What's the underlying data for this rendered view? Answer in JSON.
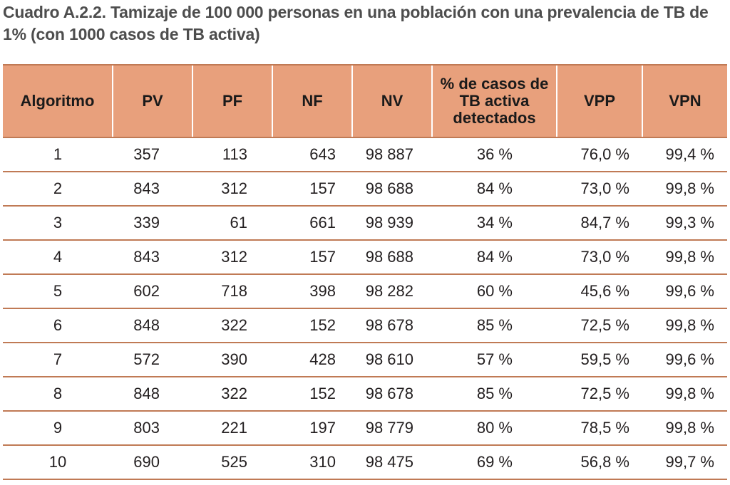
{
  "caption": "Cuadro A.2.2. Tamizaje de 100 000 personas en una población con una prevalencia de TB de 1% (con 1000 casos de TB activa)",
  "columns": [
    "Algoritmo",
    "PV",
    "PF",
    "NF",
    "NV",
    "% de casos de TB activa detectados",
    "VPP",
    "VPN"
  ],
  "rows": [
    [
      "1",
      "357",
      "113",
      "643",
      "98 887",
      "36 %",
      "76,0 %",
      "99,4 %"
    ],
    [
      "2",
      "843",
      "312",
      "157",
      "98 688",
      "84 %",
      "73,0 %",
      "99,8 %"
    ],
    [
      "3",
      "339",
      "61",
      "661",
      "98 939",
      "34 %",
      "84,7 %",
      "99,3 %"
    ],
    [
      "4",
      "843",
      "312",
      "157",
      "98 688",
      "84 %",
      "73,0 %",
      "99,8 %"
    ],
    [
      "5",
      "602",
      "718",
      "398",
      "98 282",
      "60 %",
      "45,6 %",
      "99,6 %"
    ],
    [
      "6",
      "848",
      "322",
      "152",
      "98 678",
      "85 %",
      "72,5 %",
      "99,8 %"
    ],
    [
      "7",
      "572",
      "390",
      "428",
      "98 610",
      "57 %",
      "59,5 %",
      "99,6 %"
    ],
    [
      "8",
      "848",
      "322",
      "152",
      "98 678",
      "85 %",
      "72,5 %",
      "99,8 %"
    ],
    [
      "9",
      "803",
      "221",
      "197",
      "98 779",
      "80 %",
      "78,5 %",
      "99,8 %"
    ],
    [
      "10",
      "690",
      "525",
      "310",
      "98 475",
      "69 %",
      "56,8 %",
      "99,7 %"
    ]
  ]
}
